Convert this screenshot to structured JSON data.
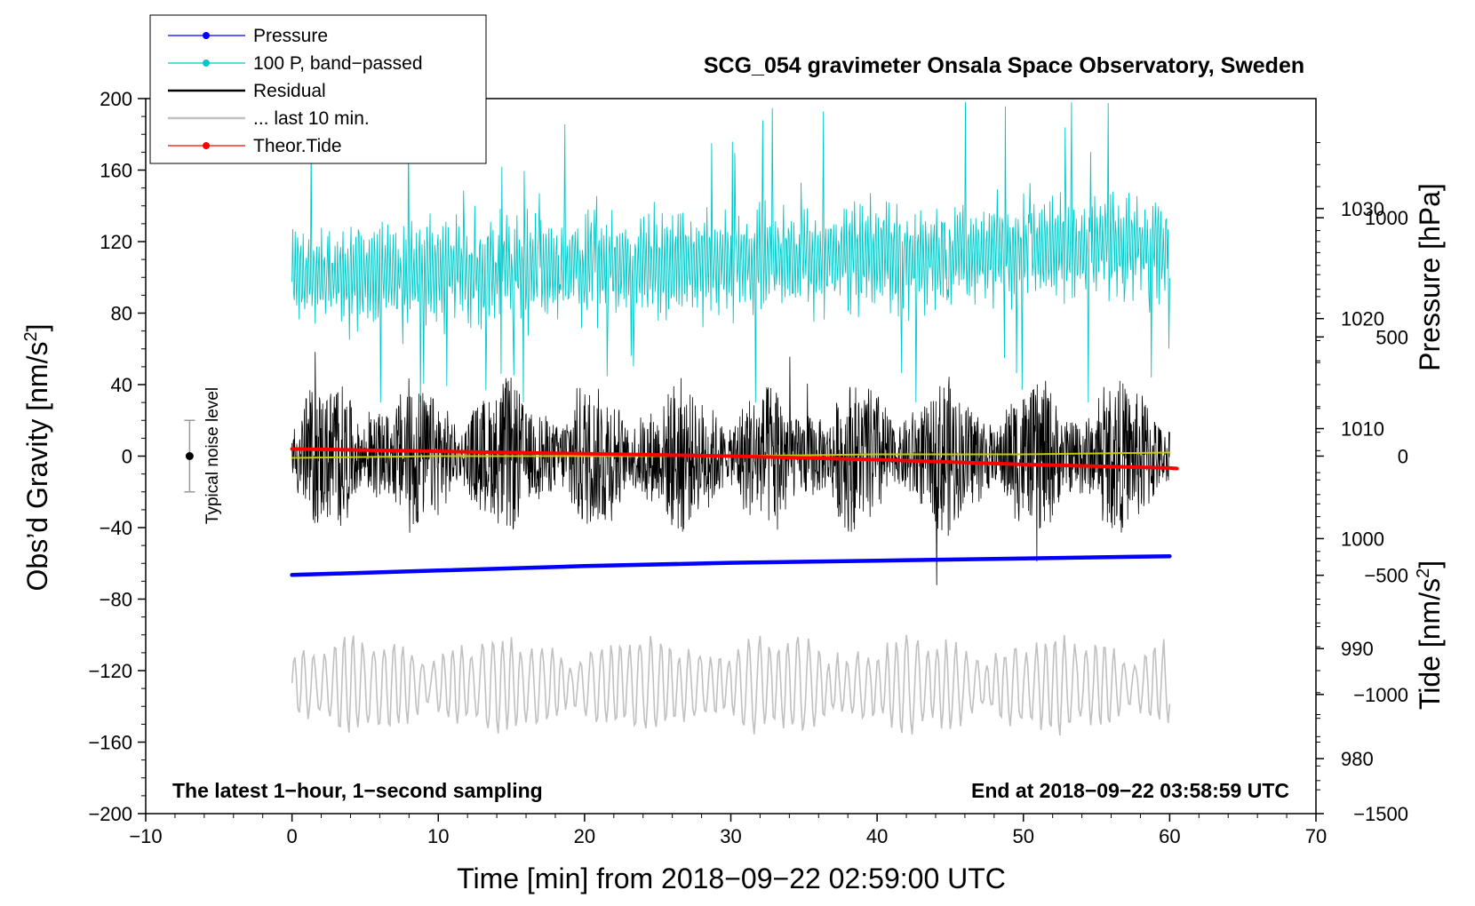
{
  "chart_data": {
    "type": "line",
    "title": "SCG_054 gravimeter Onsala Space Observatory, Sweden",
    "xlabel": "Time [min] from 2018−09−22 02:59:00 UTC",
    "ylabel_main": "Obs’d Gravity [nm/s",
    "ylabel_main_sup": "2",
    "ylabel_main_end": "]",
    "ylabel_pressure": "Pressure [hPa]",
    "ylabel_tide": "Tide [nm/s",
    "ylabel_tide_sup": "2",
    "ylabel_tide_end": "]",
    "xlim": [
      -10,
      70
    ],
    "ylim": [
      -200,
      200
    ],
    "pressure_lim": [
      975.0,
      1040.0
    ],
    "tide_lim": [
      -1500,
      1500
    ],
    "x_ticks": [
      -10,
      0,
      10,
      20,
      30,
      40,
      50,
      60,
      70
    ],
    "x_tick_labels": [
      "−10",
      "0",
      "10",
      "20",
      "30",
      "40",
      "50",
      "60",
      "70"
    ],
    "y_ticks": [
      200,
      160,
      120,
      80,
      40,
      0,
      -40,
      -80,
      -120,
      -160,
      -200
    ],
    "y_tick_labels": [
      "200",
      "160",
      "120",
      "80",
      "40",
      "0",
      "−40",
      "−80",
      "−120",
      "−160",
      "−200"
    ],
    "pressure_ticks": [
      1030,
      1020,
      1010,
      1000,
      990,
      980
    ],
    "pressure_tick_labels": [
      "1030",
      "1020",
      "1010",
      "1000",
      "990",
      "980"
    ],
    "tide_ticks": [
      1000,
      500,
      0,
      -500,
      -1000,
      -1500
    ],
    "tide_tick_labels": [
      "1000",
      "500",
      "0",
      "−500",
      "−1000",
      "−1500"
    ],
    "annotation_left": "The latest 1−hour, 1−second sampling",
    "annotation_right": "End at 2018−09−22 03:58:59 UTC",
    "noise_label": "Typical noise level",
    "noise_level": {
      "x": -7,
      "center": 0,
      "low": -20,
      "high": 20
    },
    "legend": [
      {
        "label": "Pressure",
        "color": "#0000ff",
        "marker": true
      },
      {
        "label": "100 P, band−passed",
        "color": "#00c8c8",
        "marker": true
      },
      {
        "label": "Residual",
        "color": "#000000",
        "marker": false
      },
      {
        "label": "... last 10 min.",
        "color": "#c0c0c0",
        "marker": false
      },
      {
        "label": "Theor.Tide",
        "color": "#ff0000",
        "marker": true
      }
    ],
    "series": [
      {
        "name": "Pressure",
        "color": "#0000ff",
        "axis": "pressure",
        "x": [
          0,
          10,
          20,
          30,
          40,
          50,
          60
        ],
        "values": [
          996.7,
          997.1,
          997.5,
          997.8,
          998.0,
          998.2,
          998.4
        ]
      },
      {
        "name": "Theor.Tide",
        "color": "#ff0000",
        "axis": "tide",
        "x": [
          0,
          10,
          20,
          30,
          40,
          50,
          60,
          60.5
        ],
        "values": [
          30,
          20,
          10,
          0,
          -15,
          -35,
          -50,
          -52
        ]
      },
      {
        "name": "Residual trend",
        "color": "#c8c800",
        "axis": "main",
        "x": [
          0,
          10,
          20,
          30,
          40,
          50,
          60
        ],
        "values": [
          -1,
          0,
          0,
          0,
          1,
          1,
          2
        ]
      },
      {
        "name": "100 P, band−passed",
        "color": "#00c8c8",
        "axis": "main",
        "x_range": [
          0,
          60
        ],
        "center": 100,
        "amplitude": 25,
        "note": "band-passed pressure, oscillating about ~100 nm/s² with peaks up to ~200"
      },
      {
        "name": "Residual",
        "color": "#000000",
        "axis": "main",
        "x_range": [
          0,
          60
        ],
        "center": 0,
        "amplitude": 35,
        "note": "residual gravity, mostly within ±40, bursts up to ~70"
      },
      {
        "name": "... last 10 min.",
        "color": "#c0c0c0",
        "axis": "main",
        "x_range": [
          0,
          60
        ],
        "center": -128,
        "amplitude": 20
      }
    ]
  }
}
